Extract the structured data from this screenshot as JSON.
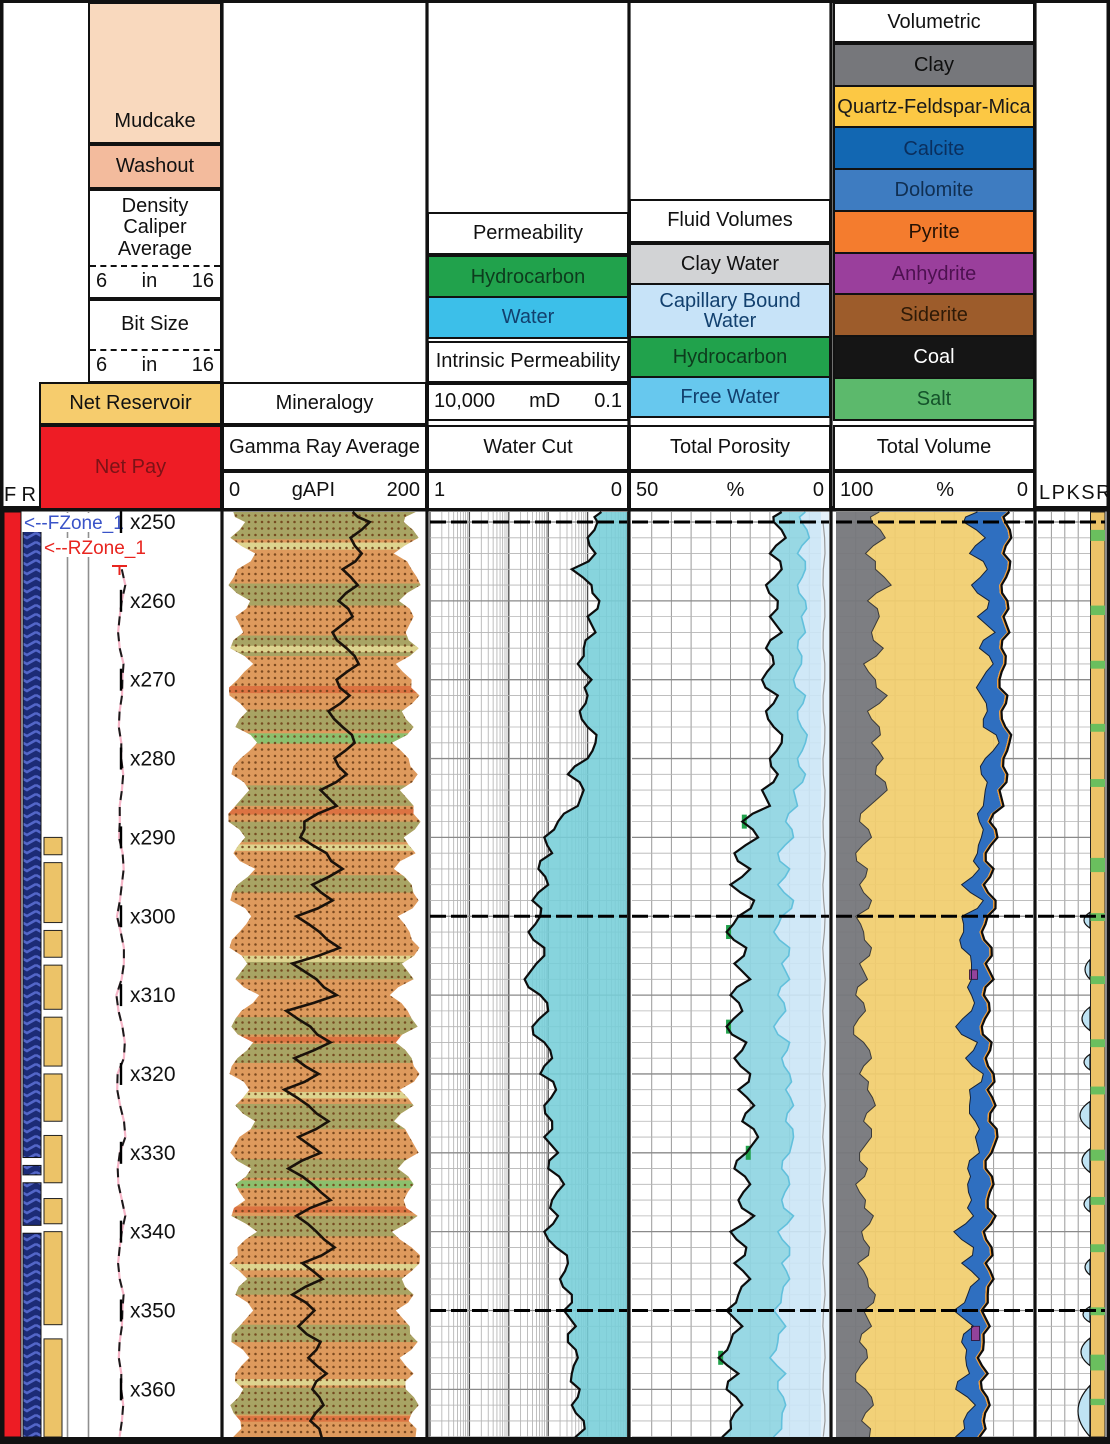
{
  "header": {
    "left": {
      "f_label": "F",
      "r_label": "R",
      "mudcake": {
        "label": "Mudcake",
        "color": "#f9d9be"
      },
      "washout": {
        "label": "Washout",
        "color": "#f3bb9d"
      },
      "density_caliper": {
        "lines": "Density Caliper Average",
        "scale": {
          "left": "6",
          "unit": "in",
          "right": "16"
        }
      },
      "bit_size": {
        "label": "Bit Size",
        "scale": {
          "left": "6",
          "unit": "in",
          "right": "16"
        }
      },
      "net_reservoir": {
        "label": "Net Reservoir",
        "color": "#f6cc6d"
      },
      "net_pay": {
        "label": "Net Pay",
        "color": "#ee1c25",
        "text_color": "#7c1216"
      }
    },
    "mineralogy": {
      "title": "Mineralogy",
      "curve": "Gamma Ray Average",
      "scale": {
        "left": "0",
        "unit": "gAPI",
        "right": "200"
      }
    },
    "permeability": {
      "title": "Permeability",
      "items": [
        {
          "label": "Hydrocarbon",
          "color": "#21a24c",
          "text": "#0d3b1d"
        },
        {
          "label": "Water",
          "color": "#3cbfe9",
          "text": "#12406e"
        }
      ],
      "intrinsic_title": "Intrinsic Permeability",
      "intrinsic_scale": {
        "left": "10,000",
        "unit": "mD",
        "right": "0.1"
      },
      "curve": "Water Cut",
      "scale": {
        "left": "1",
        "right": "0"
      }
    },
    "fluid": {
      "title": "Fluid Volumes",
      "items": [
        {
          "label": "Clay Water",
          "color": "#d2d3d5",
          "text": "#111111"
        },
        {
          "label": "Capillary Bound Water",
          "color": "#c7e3f8",
          "text": "#12406e"
        },
        {
          "label": "Hydrocarbon",
          "color": "#21a24c",
          "text": "#0d3b1d"
        },
        {
          "label": "Free Water",
          "color": "#67c8ee",
          "text": "#12406e"
        }
      ],
      "curve": "Total Porosity",
      "scale": {
        "left": "50",
        "unit": "%",
        "right": "0"
      }
    },
    "volumetric": {
      "title": "Volumetric",
      "items": [
        {
          "label": "Clay",
          "color": "#76777b",
          "text": "#0e0e0e"
        },
        {
          "label": "Quartz-Feldspar-Mica",
          "color": "#fcc844",
          "text": "#1a1a1a"
        },
        {
          "label": "Calcite",
          "color": "#1267b2",
          "text": "#0a2f5e"
        },
        {
          "label": "Dolomite",
          "color": "#3e7cc1",
          "text": "#102f52"
        },
        {
          "label": "Pyrite",
          "color": "#f47c2e",
          "text": "#271204"
        },
        {
          "label": "Anhydrite",
          "color": "#9a3f9c",
          "text": "#4d1150"
        },
        {
          "label": "Siderite",
          "color": "#9d5c2b",
          "text": "#2e1a07"
        },
        {
          "label": "Coal",
          "color": "#151515",
          "text": "#ffffff"
        },
        {
          "label": "Salt",
          "color": "#5cb96c",
          "text": "#14522a"
        }
      ],
      "curve": "Total Volume",
      "scale": {
        "left": "100",
        "unit": "%",
        "right": "0"
      }
    },
    "flags_label": "LPKSR"
  },
  "zones": {
    "fzone": {
      "label": "<--FZone_1",
      "color": "#3953c8"
    },
    "rzone": {
      "label": "<--RZone_1",
      "color": "#e8251f"
    }
  },
  "chart_data": {
    "type": "well-log",
    "depth_axis": {
      "tick_labels": [
        "x250",
        "x260",
        "x270",
        "x280",
        "x290",
        "x300",
        "x310",
        "x320",
        "x330",
        "x340",
        "x350",
        "x360"
      ],
      "tick_values": [
        250,
        260,
        270,
        280,
        290,
        300,
        310,
        320,
        330,
        340,
        350,
        360
      ],
      "major_lines": [
        250,
        300,
        350
      ],
      "minor_step": 2
    },
    "tracks": {
      "gamma_ray": {
        "name": "Gamma Ray Average",
        "unit": "gAPI",
        "range": [
          0,
          200
        ]
      },
      "water_cut": {
        "name": "Water Cut",
        "range": [
          1,
          0
        ]
      },
      "intrinsic_permeability": {
        "name": "Intrinsic Permeability",
        "unit": "mD",
        "range": [
          10000,
          0.1
        ],
        "scale": "log"
      },
      "total_porosity": {
        "name": "Total Porosity",
        "unit": "%",
        "range": [
          50,
          0
        ]
      },
      "total_volume": {
        "name": "Total Volume",
        "unit": "%",
        "range": [
          100,
          0
        ]
      }
    },
    "depth": [
      248,
      250,
      252,
      254,
      256,
      258,
      260,
      262,
      264,
      266,
      268,
      270,
      272,
      274,
      276,
      278,
      280,
      282,
      284,
      286,
      288,
      290,
      292,
      294,
      296,
      298,
      300,
      302,
      304,
      306,
      308,
      310,
      312,
      314,
      316,
      318,
      320,
      322,
      324,
      326,
      328,
      330,
      332,
      334,
      336,
      338,
      340,
      342,
      344,
      346,
      348,
      350,
      352,
      354,
      356,
      358,
      360,
      362,
      364,
      366
    ],
    "gr": [
      128,
      145,
      126,
      137,
      118,
      133,
      114,
      128,
      108,
      122,
      134,
      112,
      125,
      104,
      118,
      130,
      110,
      122,
      96,
      112,
      80,
      76,
      102,
      118,
      88,
      108,
      72,
      95,
      115,
      68,
      92,
      112,
      62,
      86,
      106,
      70,
      94,
      60,
      84,
      104,
      74,
      96,
      64,
      88,
      106,
      72,
      92,
      110,
      78,
      98,
      68,
      90,
      74,
      96,
      84,
      102,
      88,
      99,
      86,
      97
    ],
    "litho_halfwidth": [
      0.92,
      0.8,
      0.95,
      0.7,
      0.88,
      0.97,
      0.75,
      0.9,
      0.82,
      0.95,
      0.72,
      0.88,
      0.96,
      0.78,
      0.9,
      0.68,
      0.85,
      0.94,
      0.76,
      0.9,
      0.97,
      0.8,
      0.92,
      0.7,
      0.88,
      0.95,
      0.74,
      0.86,
      0.96,
      0.78,
      0.9,
      0.66,
      0.84,
      0.94,
      0.72,
      0.88,
      0.96,
      0.76,
      0.9,
      0.7,
      0.86,
      0.95,
      0.74,
      0.9,
      0.8,
      0.94,
      0.68,
      0.88,
      0.96,
      0.78,
      0.9,
      0.72,
      0.86,
      0.94,
      0.76,
      0.9,
      0.82,
      0.95,
      0.85,
      0.92
    ],
    "water_cut": [
      0.13,
      0.15,
      0.2,
      0.16,
      0.28,
      0.18,
      0.14,
      0.2,
      0.16,
      0.22,
      0.25,
      0.18,
      0.2,
      0.24,
      0.2,
      0.16,
      0.2,
      0.3,
      0.22,
      0.25,
      0.35,
      0.42,
      0.38,
      0.45,
      0.4,
      0.48,
      0.44,
      0.5,
      0.42,
      0.46,
      0.52,
      0.44,
      0.4,
      0.48,
      0.42,
      0.38,
      0.44,
      0.36,
      0.42,
      0.38,
      0.42,
      0.35,
      0.4,
      0.32,
      0.38,
      0.35,
      0.42,
      0.36,
      0.3,
      0.34,
      0.28,
      0.32,
      0.26,
      0.3,
      0.25,
      0.28,
      0.24,
      0.28,
      0.22,
      0.26
    ],
    "porosity": [
      12,
      14,
      11,
      15,
      12,
      16,
      13,
      15,
      12,
      16,
      14,
      17,
      13,
      16,
      14,
      12,
      15,
      13,
      17,
      15,
      22,
      18,
      24,
      20,
      25,
      19,
      23,
      26,
      21,
      24,
      20,
      25,
      22,
      26,
      21,
      24,
      20,
      23,
      19,
      22,
      18,
      21,
      24,
      20,
      23,
      19,
      25,
      21,
      24,
      20,
      23,
      26,
      22,
      25,
      28,
      23,
      26,
      22,
      25,
      27
    ],
    "capillary_bound": [
      6,
      7,
      5,
      8,
      6,
      8,
      6,
      7,
      6,
      8,
      7,
      9,
      6,
      8,
      7,
      6,
      8,
      6,
      9,
      8,
      11,
      9,
      13,
      10,
      13,
      9,
      12,
      14,
      10,
      12,
      10,
      13,
      11,
      14,
      10,
      12,
      10,
      11,
      9,
      11,
      9,
      10,
      12,
      10,
      12,
      9,
      13,
      10,
      12,
      10,
      12,
      14,
      11,
      13,
      15,
      11,
      13,
      11,
      12,
      14
    ],
    "hydrocarbon": [
      0,
      0,
      0,
      0,
      0,
      0,
      0,
      0,
      0,
      0,
      0,
      0,
      0,
      0,
      0,
      0,
      0,
      0,
      0,
      0,
      1.5,
      0,
      0,
      0,
      0,
      0,
      0,
      1.2,
      0,
      0,
      0,
      0,
      0,
      1.5,
      0,
      0,
      0,
      0,
      0,
      0,
      0,
      1.2,
      0,
      0,
      0,
      0,
      0,
      0,
      0,
      0,
      0,
      0,
      0,
      0,
      1.5,
      0,
      0,
      0,
      0,
      0
    ],
    "clay": [
      22,
      18,
      25,
      15,
      20,
      28,
      16,
      22,
      18,
      24,
      14,
      20,
      26,
      16,
      22,
      18,
      24,
      20,
      26,
      17,
      12,
      18,
      10,
      16,
      12,
      18,
      10,
      14,
      18,
      12,
      16,
      10,
      15,
      9,
      14,
      18,
      12,
      16,
      20,
      14,
      18,
      12,
      16,
      10,
      15,
      19,
      13,
      17,
      11,
      16,
      20,
      14,
      18,
      12,
      16,
      10,
      15,
      19,
      13,
      17
    ],
    "carbonate": [
      15,
      20,
      12,
      16,
      10,
      14,
      8,
      12,
      6,
      10,
      5,
      8,
      12,
      6,
      10,
      4,
      8,
      12,
      6,
      9,
      4,
      7,
      3,
      6,
      10,
      5,
      12,
      8,
      14,
      6,
      10,
      5,
      8,
      12,
      6,
      9,
      4,
      8,
      12,
      6,
      10,
      5,
      8,
      12,
      7,
      10,
      14,
      8,
      11,
      6,
      9,
      13,
      7,
      10,
      5,
      8,
      12,
      6,
      9,
      11
    ],
    "litho_bands": [
      [
        248,
        252.2,
        "olive"
      ],
      [
        252.6,
        253.5,
        "cream"
      ],
      [
        257.8,
        260.6,
        "olive"
      ],
      [
        264.4,
        267,
        "olive"
      ],
      [
        265.7,
        266.5,
        "cream"
      ],
      [
        270.8,
        271.7,
        "red"
      ],
      [
        273.8,
        276.4,
        "olive"
      ],
      [
        276.8,
        278.1,
        "green"
      ],
      [
        283.4,
        286,
        "olive"
      ],
      [
        286.4,
        287.1,
        "red"
      ],
      [
        288,
        290.6,
        "olive"
      ],
      [
        290.9,
        291.7,
        "cream"
      ],
      [
        294.8,
        297,
        "olive"
      ],
      [
        305,
        305.8,
        "cream"
      ],
      [
        305.8,
        308,
        "olive"
      ],
      [
        312.8,
        315,
        "olive"
      ],
      [
        315.3,
        316,
        "red"
      ],
      [
        316.2,
        318.6,
        "olive"
      ],
      [
        322.3,
        323.1,
        "cream"
      ],
      [
        323.8,
        327,
        "olive"
      ],
      [
        330.8,
        333.2,
        "olive"
      ],
      [
        333.5,
        334.5,
        "green"
      ],
      [
        336.8,
        337.6,
        "red"
      ],
      [
        338,
        340.6,
        "olive"
      ],
      [
        344.1,
        344.9,
        "cream"
      ],
      [
        345.8,
        348,
        "olive"
      ],
      [
        351.8,
        354,
        "olive"
      ],
      [
        358.7,
        359.5,
        "cream"
      ],
      [
        359.8,
        363.2,
        "olive"
      ],
      [
        363.4,
        364.1,
        "red"
      ]
    ],
    "litho_colors": {
      "base": "#de9a5d",
      "olive": "#a8a464",
      "cream": "#ddd48f",
      "green": "#8cbf6d",
      "red": "#dc7342",
      "dots": "#71421a"
    },
    "net_reservoir_segments": [
      [
        290,
        292.2
      ],
      [
        293.2,
        300.8
      ],
      [
        301.8,
        305.2
      ],
      [
        306.2,
        311.8
      ],
      [
        312.8,
        319
      ],
      [
        320,
        326
      ],
      [
        327.8,
        333.8
      ],
      [
        335.8,
        339
      ],
      [
        340,
        351.8
      ],
      [
        353.6,
        366.4
      ]
    ],
    "fzone_segments": [
      [
        250.8,
        330.6
      ],
      [
        331.6,
        332.8
      ],
      [
        333.8,
        339.2
      ],
      [
        340.2,
        366.4
      ]
    ],
    "flag_green_segments": [
      [
        251,
        252.4
      ],
      [
        260.6,
        261.8
      ],
      [
        267.6,
        268.6
      ],
      [
        275.6,
        276.6
      ],
      [
        282.6,
        283.6
      ],
      [
        292.6,
        294.4
      ],
      [
        299.6,
        300.6
      ],
      [
        307.6,
        308.6
      ],
      [
        315.6,
        316.6
      ],
      [
        321.6,
        322.6
      ],
      [
        329.6,
        331
      ],
      [
        335.6,
        336.6
      ],
      [
        341.6,
        342.6
      ],
      [
        349.6,
        350.6
      ],
      [
        355.6,
        357.6
      ],
      [
        361.2,
        362
      ]
    ],
    "flag_water_blobs": [
      [
        299.5,
        301.5,
        6
      ],
      [
        305.5,
        308,
        5
      ],
      [
        311.5,
        314.5,
        8
      ],
      [
        317.5,
        319.5,
        6
      ],
      [
        323.5,
        327,
        10
      ],
      [
        329.5,
        332.5,
        8
      ],
      [
        335.5,
        337.5,
        6
      ],
      [
        343.5,
        345.5,
        5
      ],
      [
        349.5,
        351.5,
        7
      ],
      [
        353.5,
        357,
        9
      ],
      [
        359.5,
        366,
        12
      ]
    ],
    "anhydrite_specks": [
      [
        306.8,
        308
      ],
      [
        352,
        353.8
      ]
    ],
    "colors": {
      "net_pay_bar": "#ed1c24",
      "fzone_bar_bg": "#1c2b76",
      "fzone_bar_chevron": "#5366c8",
      "net_reservoir_bar": "#ecc368",
      "water_cut_fill": "#76ced8",
      "free_water_fill": "#8fd5e2",
      "capillary_fill": "#cbe6f6",
      "clay_water_strip": "#eaf3fa",
      "hydrocarbon_fill": "#22a24c",
      "clay_fill": "#76777b",
      "qfm_fill": "#f1cd6e",
      "carbonate_fill": "#2f6fc0",
      "pyrite_fill": "#f59c31",
      "anhydrite_fill": "#93439b",
      "flag_strip_yellow": "#ecc368",
      "flag_strip_green": "#6abf5e",
      "flag_water_fill": "#bfe3f3"
    }
  }
}
